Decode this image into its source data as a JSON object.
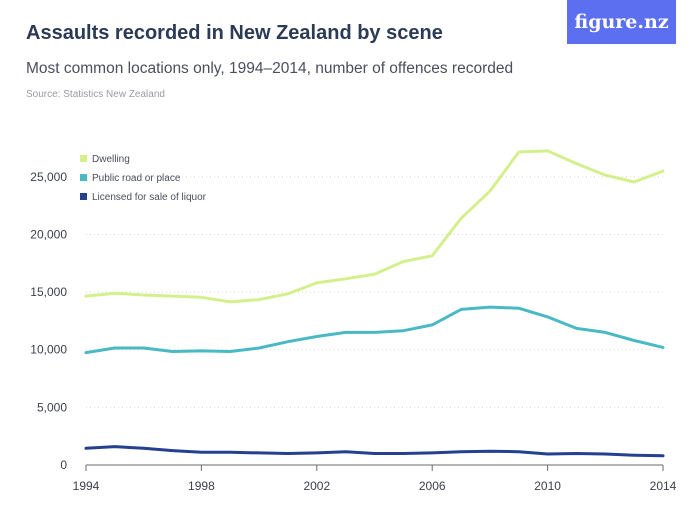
{
  "header": {
    "title": "Assaults recorded in New Zealand by scene",
    "subtitle": "Most common locations only, 1994–2014, number of offences recorded",
    "source": "Source: Statistics New Zealand"
  },
  "logo": {
    "text": "figure.nz",
    "color": "#5b6ff0"
  },
  "chart_data": {
    "type": "line",
    "title": "Assaults recorded in New Zealand by scene",
    "subtitle": "Most common locations only, 1994–2014, number of offences recorded",
    "xlabel": "",
    "ylabel": "",
    "x": [
      1994,
      1995,
      1996,
      1997,
      1998,
      1999,
      2000,
      2001,
      2002,
      2003,
      2004,
      2005,
      2006,
      2007,
      2008,
      2009,
      2010,
      2011,
      2012,
      2013,
      2014
    ],
    "xlim": [
      1994,
      2014
    ],
    "ylim": [
      0,
      27500
    ],
    "x_ticks": [
      1994,
      1998,
      2002,
      2006,
      2010,
      2014
    ],
    "x_tick_labels": [
      "1994",
      "1998",
      "2002",
      "2006",
      "2010",
      "2014"
    ],
    "y_ticks": [
      0,
      5000,
      10000,
      15000,
      20000,
      25000
    ],
    "y_tick_labels": [
      "0",
      "5,000",
      "10,000",
      "15,000",
      "20,000",
      "25,000"
    ],
    "grid": "horizontal",
    "legend_position": "top-left",
    "series": [
      {
        "name": "Dwelling",
        "color": "#d4f08c",
        "values": [
          14650,
          14900,
          14750,
          14650,
          14550,
          14150,
          14350,
          14850,
          15800,
          16150,
          16550,
          17650,
          18150,
          21400,
          23750,
          27150,
          27250,
          26150,
          25150,
          24550,
          25500
        ]
      },
      {
        "name": "Public road or place",
        "color": "#49b9c3",
        "values": [
          9750,
          10150,
          10150,
          9850,
          9900,
          9850,
          10150,
          10700,
          11150,
          11500,
          11500,
          11650,
          12150,
          13500,
          13700,
          13600,
          12850,
          11850,
          11500,
          10800,
          10200
        ]
      },
      {
        "name": "Licensed for sale of liquor",
        "color": "#24408e",
        "values": [
          1450,
          1600,
          1450,
          1250,
          1100,
          1100,
          1050,
          1000,
          1050,
          1150,
          1000,
          1000,
          1050,
          1150,
          1200,
          1150,
          950,
          1000,
          950,
          850,
          800
        ]
      }
    ]
  }
}
